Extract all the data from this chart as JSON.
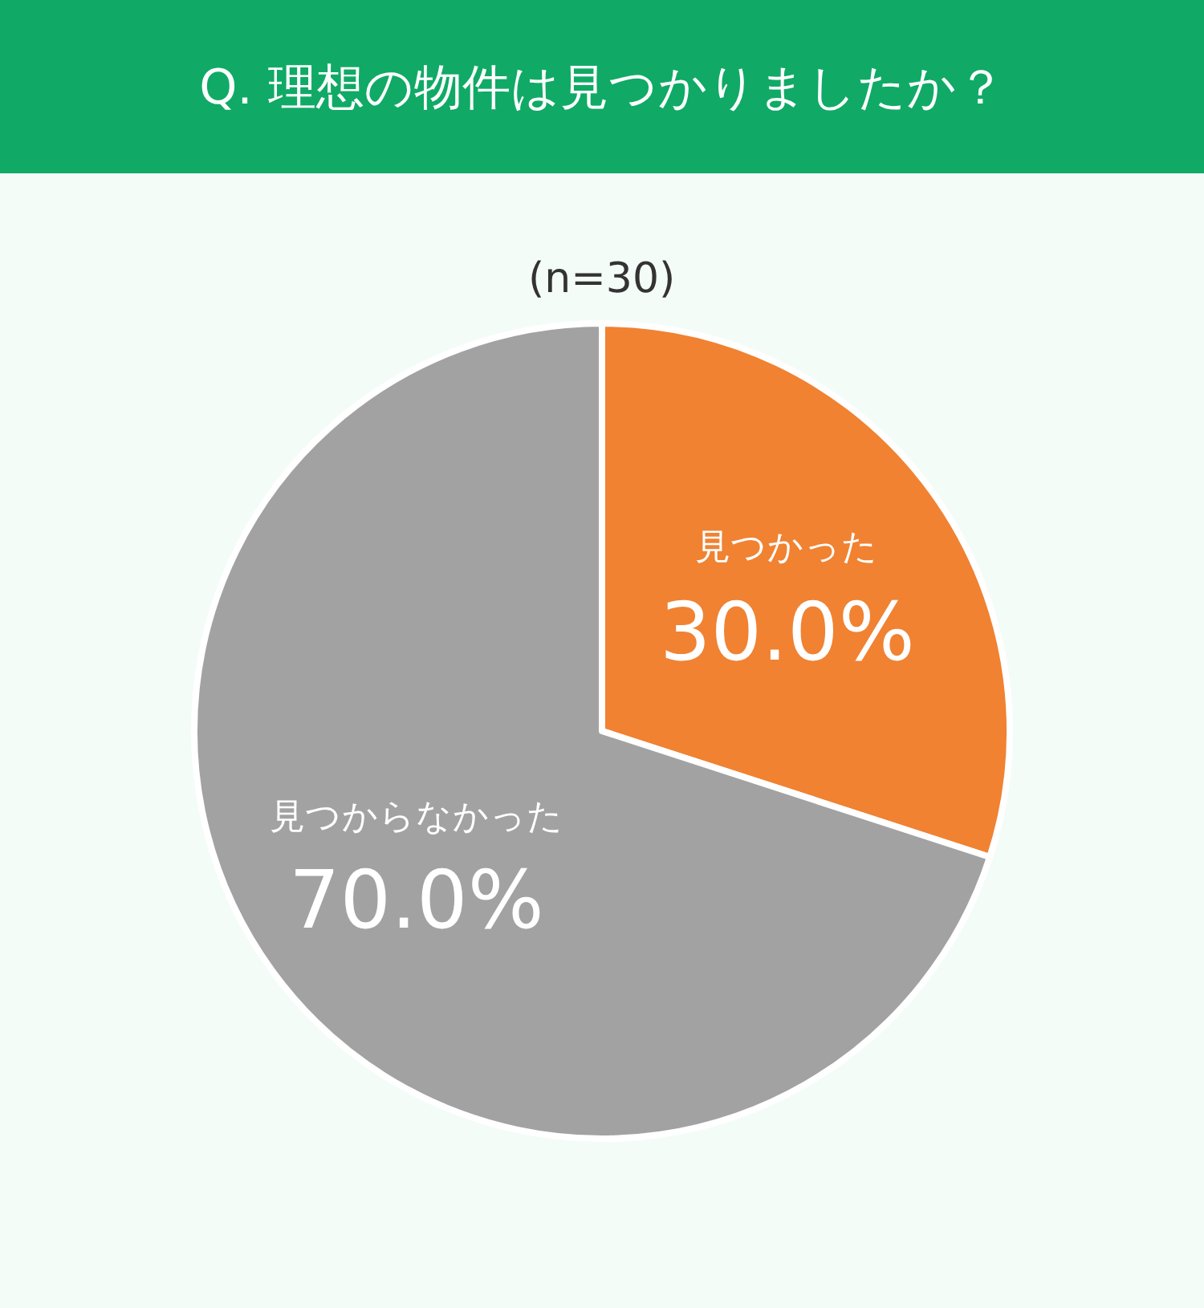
{
  "chart_data": {
    "type": "pie",
    "title": "Q. 理想の物件は見つかりましたか？",
    "subtitle": "(n=30)",
    "categories": [
      "見つかった",
      "見つからなかった"
    ],
    "values": [
      30.0,
      70.0
    ],
    "colors": [
      "#f08232",
      "#a2a2a2"
    ],
    "value_labels": [
      "30.0%",
      "70.0%"
    ],
    "legend": false
  }
}
